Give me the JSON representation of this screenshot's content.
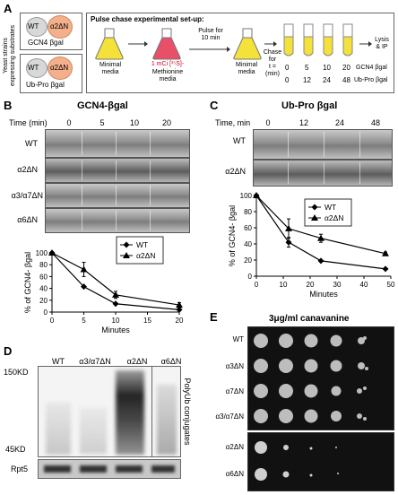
{
  "panelA": {
    "letter": "A",
    "side_label": "Yeast strains\nexpressing substrates",
    "strain1": {
      "wt": "WT",
      "mut": "α2ΔN",
      "substrate": "GCN4 βgal"
    },
    "strain2": {
      "wt": "WT",
      "mut": "α2ΔN",
      "substrate": "Ub-Pro βgal"
    },
    "setup_title": "Pulse chase experimental set-up:",
    "flask1_label": "Minimal\nmedia",
    "flask2_label_red": "1 mCi [³⁵S]-",
    "flask2_label": "Methionine\nmedia",
    "pulse_label": "Pulse for\n10 min",
    "flask3_label": "Minimal\nmedia",
    "chase_label": "Chase\nfor\nt =\n(min)",
    "lysis_label": "Lysis\n& IP",
    "times_gcn4": [
      "0",
      "5",
      "10",
      "20"
    ],
    "times_ubpro": [
      "0",
      "12",
      "24",
      "48"
    ],
    "gcn4_label": "GCN4 βgal",
    "ubpro_label": "Ub-Pro βgal"
  },
  "panelB": {
    "letter": "B",
    "title": "GCN4-βgal",
    "time_label": "Time (min)",
    "times": [
      "0",
      "5",
      "10",
      "20"
    ],
    "rows": [
      "WT",
      "α2ΔN",
      "α3/α7ΔN",
      "α6ΔN"
    ]
  },
  "panelC": {
    "letter": "C",
    "title": "Ub-Pro βgal",
    "time_label": "Time, min",
    "times": [
      "0",
      "12",
      "24",
      "48"
    ],
    "rows": [
      "WT",
      "α2ΔN"
    ]
  },
  "panelD": {
    "letter": "D",
    "lanes": [
      "WT",
      "α3/α7ΔN",
      "α2ΔN",
      "α6ΔN"
    ],
    "mw_top": "150KD",
    "mw_bottom": "45KD",
    "side_label": "PolyUb conjugates",
    "loading_label": "Rpt5"
  },
  "panelE": {
    "letter": "E",
    "title": "3μg/ml canavanine",
    "rows": [
      "WT",
      "α3ΔN",
      "α7ΔN",
      "α3/α7ΔN",
      "α2ΔN",
      "α6ΔN"
    ]
  },
  "chart_data": [
    {
      "type": "line",
      "ylabel": "% of GCN4- βgal",
      "xlabel": "Minutes",
      "xlim": [
        0,
        20
      ],
      "ylim": [
        0,
        100
      ],
      "xticks": [
        0,
        5,
        10,
        15,
        20
      ],
      "yticks": [
        0,
        20,
        40,
        60,
        80,
        100
      ],
      "legend": "top-right",
      "series": [
        {
          "name": "WT",
          "marker": "diamond",
          "x": [
            0,
            5,
            10,
            20
          ],
          "y": [
            100,
            43,
            14,
            4
          ],
          "err": [
            0,
            0,
            0,
            0
          ]
        },
        {
          "name": "α2ΔN",
          "marker": "triangle",
          "x": [
            0,
            5,
            10,
            20
          ],
          "y": [
            100,
            72,
            29,
            12
          ],
          "err": [
            0,
            12,
            6,
            4
          ]
        }
      ]
    },
    {
      "type": "line",
      "ylabel": "% of GCN4- βgal",
      "xlabel": "Minutes",
      "xlim": [
        0,
        50
      ],
      "ylim": [
        0,
        100
      ],
      "xticks": [
        0,
        10,
        20,
        30,
        40,
        50
      ],
      "yticks": [
        0,
        20,
        40,
        60,
        80,
        100
      ],
      "legend": "top-right",
      "series": [
        {
          "name": "WT",
          "marker": "diamond",
          "x": [
            0,
            12,
            24,
            48
          ],
          "y": [
            100,
            42,
            19,
            9
          ],
          "err": [
            0,
            6,
            0,
            0
          ]
        },
        {
          "name": "α2ΔN",
          "marker": "triangle",
          "x": [
            0,
            12,
            24,
            48
          ],
          "y": [
            100,
            59,
            47,
            28
          ],
          "err": [
            0,
            12,
            5,
            2
          ]
        }
      ]
    }
  ]
}
